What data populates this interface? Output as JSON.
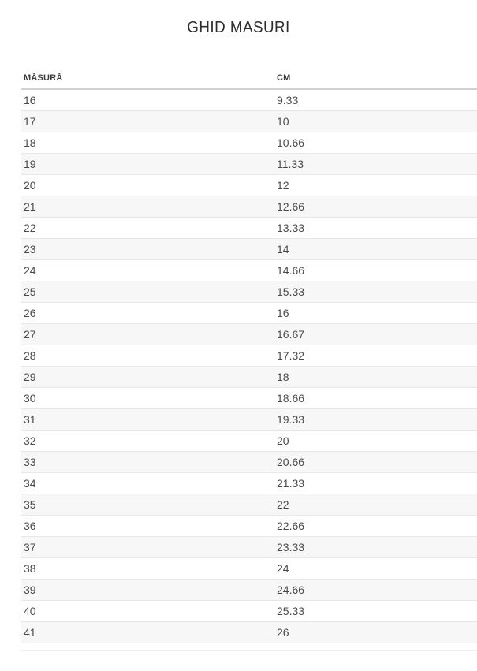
{
  "page": {
    "title": "GHID MASURI"
  },
  "table": {
    "columns": [
      {
        "key": "size",
        "label": "MĂSURĂ"
      },
      {
        "key": "cm",
        "label": "CM"
      }
    ],
    "rows": [
      {
        "size": "16",
        "cm": "9.33"
      },
      {
        "size": "17",
        "cm": "10"
      },
      {
        "size": "18",
        "cm": "10.66"
      },
      {
        "size": "19",
        "cm": "11.33"
      },
      {
        "size": "20",
        "cm": "12"
      },
      {
        "size": "21",
        "cm": "12.66"
      },
      {
        "size": "22",
        "cm": "13.33"
      },
      {
        "size": "23",
        "cm": "14"
      },
      {
        "size": "24",
        "cm": "14.66"
      },
      {
        "size": "25",
        "cm": "15.33"
      },
      {
        "size": "26",
        "cm": "16"
      },
      {
        "size": "27",
        "cm": "16.67"
      },
      {
        "size": "28",
        "cm": "17.32"
      },
      {
        "size": "29",
        "cm": "18"
      },
      {
        "size": "30",
        "cm": "18.66"
      },
      {
        "size": "31",
        "cm": "19.33"
      },
      {
        "size": "32",
        "cm": "20"
      },
      {
        "size": "33",
        "cm": "20.66"
      },
      {
        "size": "34",
        "cm": "21.33"
      },
      {
        "size": "35",
        "cm": "22"
      },
      {
        "size": "36",
        "cm": "22.66"
      },
      {
        "size": "37",
        "cm": "23.33"
      },
      {
        "size": "38",
        "cm": "24"
      },
      {
        "size": "39",
        "cm": "24.66"
      },
      {
        "size": "40",
        "cm": "25.33"
      },
      {
        "size": "41",
        "cm": "26"
      }
    ]
  },
  "colors": {
    "alt_row": "#f7f7f7",
    "row_border": "#e7e7e7",
    "header_border": "#d2d2d2",
    "cell_text": "#4a4a4a",
    "header_text": "#3c3c3c",
    "title_text": "#2e2e2e",
    "page_bg": "#ffffff"
  }
}
